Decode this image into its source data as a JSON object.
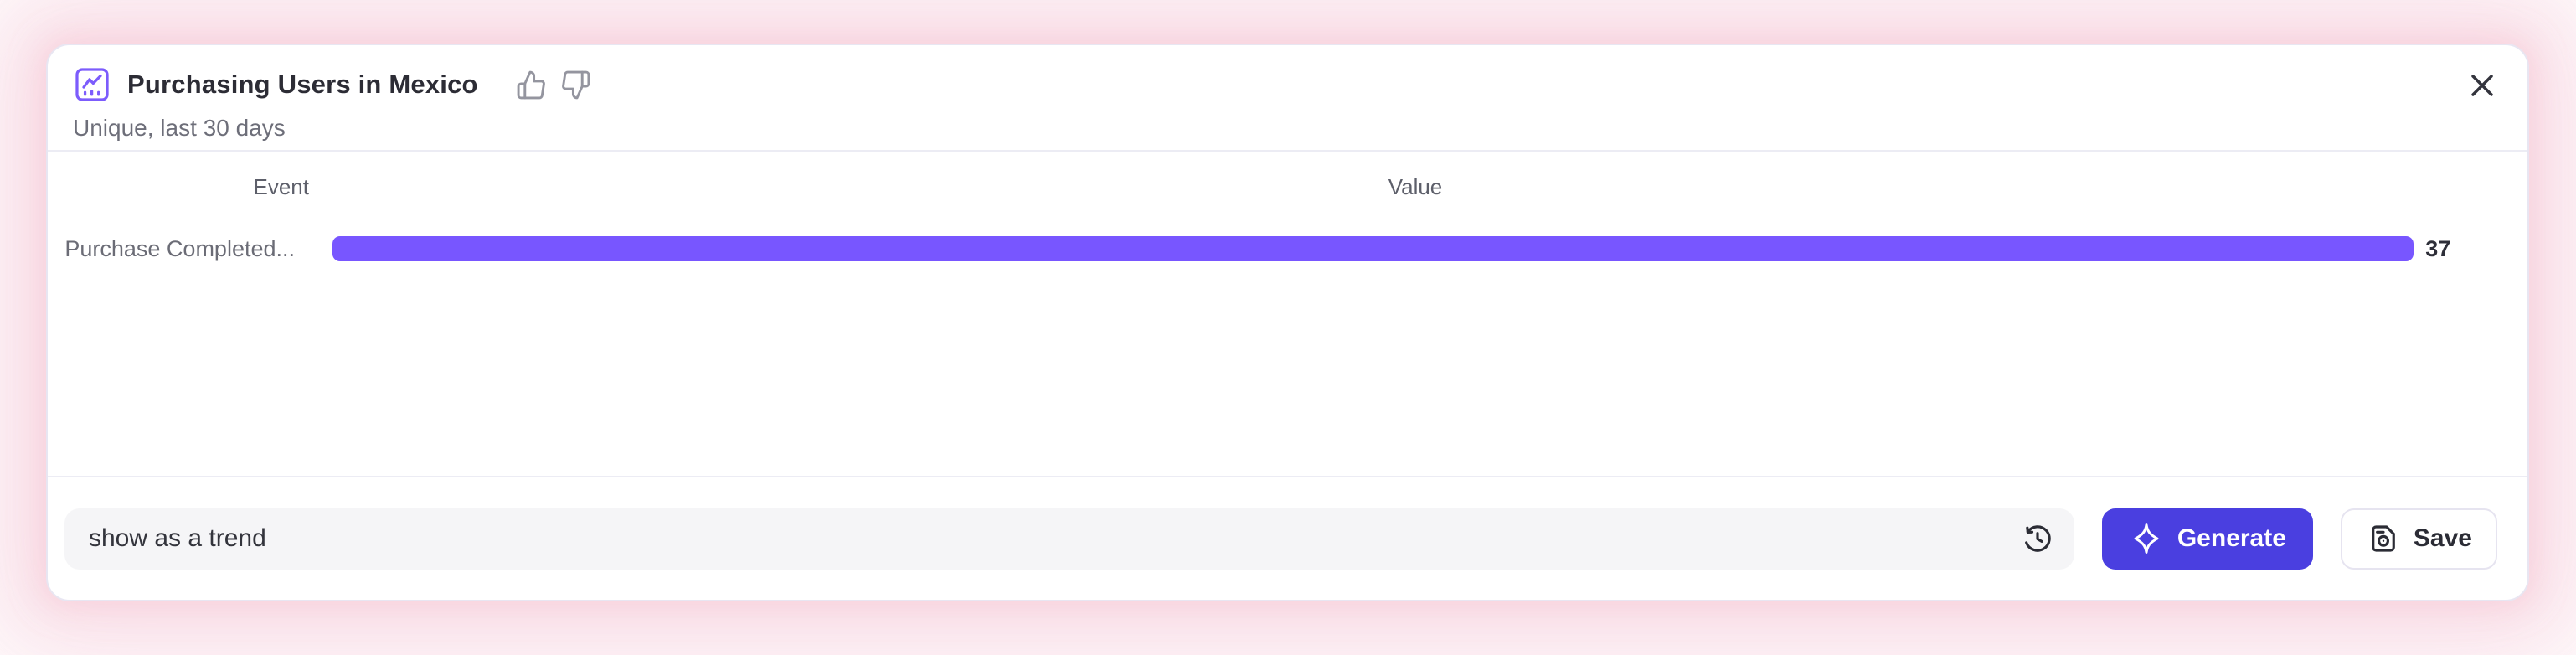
{
  "header": {
    "title": "Purchasing Users in Mexico",
    "subtitle": "Unique, last 30 days"
  },
  "chart_data": {
    "type": "bar",
    "orientation": "horizontal",
    "title": "Purchasing Users in Mexico",
    "subtitle": "Unique, last 30 days",
    "columns": [
      "Event",
      "Value"
    ],
    "categories": [
      "Purchase Completed..."
    ],
    "values": [
      37
    ],
    "xlim": [
      0,
      38.5
    ],
    "bar_color": "#7856FF",
    "grid": false,
    "legend": false
  },
  "footer": {
    "input_value": "show as a trend",
    "generate_label": "Generate",
    "save_label": "Save"
  },
  "icons": {
    "report": "line-chart-icon",
    "thumbs_up": "thumbs-up-icon",
    "thumbs_down": "thumbs-down-icon",
    "close": "close-icon",
    "history": "history-icon",
    "sparkle": "sparkle-icon",
    "save": "save-icon"
  },
  "colors": {
    "bar": "#7856FF",
    "generate_button": "#4A3FE0",
    "report_icon": "#7C5CFC",
    "glow": "#F8D6E1",
    "card_border": "#E8E6F2"
  }
}
